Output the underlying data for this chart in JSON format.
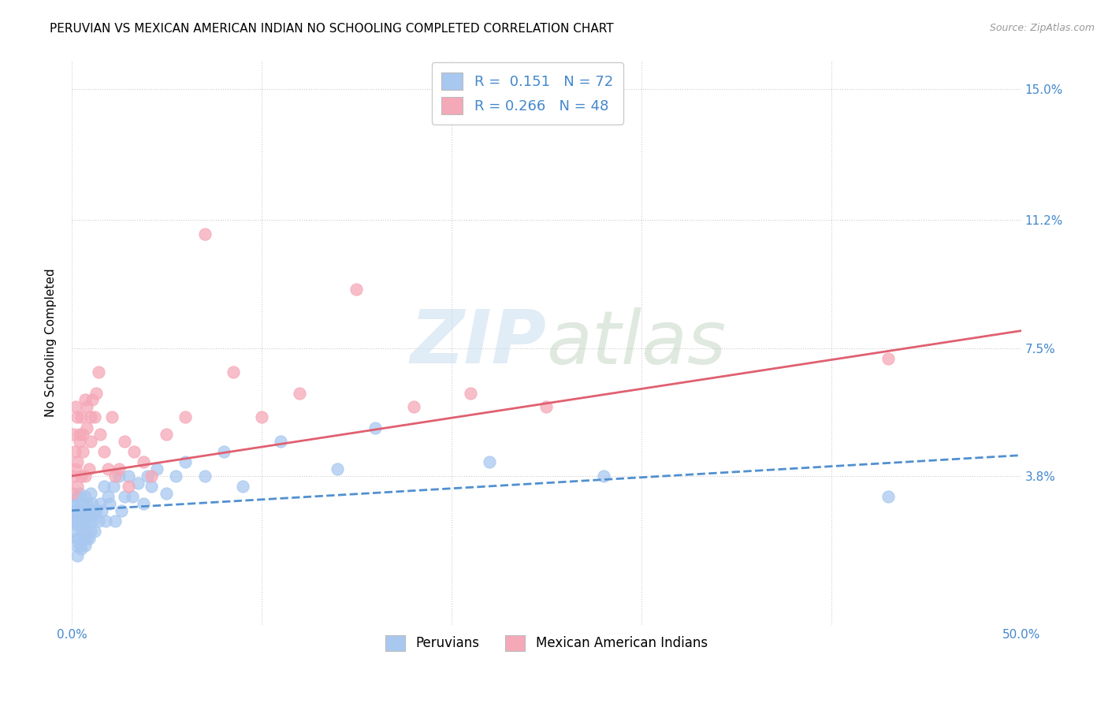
{
  "title": "PERUVIAN VS MEXICAN AMERICAN INDIAN NO SCHOOLING COMPLETED CORRELATION CHART",
  "source": "Source: ZipAtlas.com",
  "ylabel": "No Schooling Completed",
  "xlabel": "",
  "watermark_zip": "ZIP",
  "watermark_atlas": "atlas",
  "xlim": [
    0.0,
    0.5
  ],
  "ylim": [
    -0.005,
    0.158
  ],
  "xtick_positions": [
    0.0,
    0.1,
    0.2,
    0.3,
    0.4,
    0.5
  ],
  "xticklabels": [
    "0.0%",
    "",
    "",
    "",
    "",
    "50.0%"
  ],
  "ytick_positions": [
    0.038,
    0.075,
    0.112,
    0.15
  ],
  "ytick_labels": [
    "3.8%",
    "7.5%",
    "11.2%",
    "15.0%"
  ],
  "blue_R": "0.151",
  "blue_N": "72",
  "pink_R": "0.266",
  "pink_N": "48",
  "legend_label_blue": "Peruvians",
  "legend_label_pink": "Mexican American Indians",
  "blue_color": "#a8c8f0",
  "pink_color": "#f5a8b8",
  "blue_line_color": "#5090d0",
  "pink_line_color": "#e06070",
  "label_color": "#4488cc",
  "background_color": "#ffffff",
  "grid_color": "#cccccc",
  "title_fontsize": 11,
  "axis_label_fontsize": 11,
  "tick_fontsize": 11,
  "blue_scatter_x": [
    0.0005,
    0.001,
    0.001,
    0.0015,
    0.002,
    0.002,
    0.002,
    0.0025,
    0.003,
    0.003,
    0.003,
    0.003,
    0.003,
    0.004,
    0.004,
    0.004,
    0.004,
    0.005,
    0.005,
    0.005,
    0.005,
    0.006,
    0.006,
    0.006,
    0.007,
    0.007,
    0.007,
    0.007,
    0.008,
    0.008,
    0.008,
    0.009,
    0.009,
    0.01,
    0.01,
    0.01,
    0.011,
    0.011,
    0.012,
    0.012,
    0.013,
    0.014,
    0.015,
    0.016,
    0.017,
    0.018,
    0.019,
    0.02,
    0.022,
    0.023,
    0.025,
    0.026,
    0.028,
    0.03,
    0.032,
    0.035,
    0.038,
    0.04,
    0.042,
    0.045,
    0.05,
    0.055,
    0.06,
    0.07,
    0.08,
    0.09,
    0.11,
    0.14,
    0.16,
    0.22,
    0.28,
    0.43
  ],
  "blue_scatter_y": [
    0.026,
    0.022,
    0.03,
    0.028,
    0.018,
    0.024,
    0.03,
    0.025,
    0.015,
    0.02,
    0.026,
    0.032,
    0.02,
    0.018,
    0.024,
    0.028,
    0.033,
    0.017,
    0.023,
    0.028,
    0.025,
    0.02,
    0.025,
    0.03,
    0.018,
    0.022,
    0.027,
    0.032,
    0.02,
    0.025,
    0.03,
    0.02,
    0.027,
    0.022,
    0.028,
    0.033,
    0.025,
    0.03,
    0.022,
    0.027,
    0.028,
    0.025,
    0.03,
    0.028,
    0.035,
    0.025,
    0.032,
    0.03,
    0.035,
    0.025,
    0.038,
    0.028,
    0.032,
    0.038,
    0.032,
    0.036,
    0.03,
    0.038,
    0.035,
    0.04,
    0.033,
    0.038,
    0.042,
    0.038,
    0.045,
    0.035,
    0.048,
    0.04,
    0.052,
    0.042,
    0.038,
    0.032
  ],
  "pink_scatter_x": [
    0.0005,
    0.001,
    0.001,
    0.0015,
    0.002,
    0.002,
    0.003,
    0.003,
    0.003,
    0.004,
    0.004,
    0.005,
    0.005,
    0.006,
    0.006,
    0.007,
    0.007,
    0.008,
    0.008,
    0.009,
    0.01,
    0.01,
    0.011,
    0.012,
    0.013,
    0.014,
    0.015,
    0.017,
    0.019,
    0.021,
    0.023,
    0.025,
    0.028,
    0.03,
    0.033,
    0.038,
    0.042,
    0.05,
    0.06,
    0.07,
    0.085,
    0.1,
    0.12,
    0.15,
    0.18,
    0.21,
    0.25,
    0.43
  ],
  "pink_scatter_y": [
    0.033,
    0.038,
    0.05,
    0.045,
    0.04,
    0.058,
    0.042,
    0.055,
    0.035,
    0.05,
    0.048,
    0.055,
    0.038,
    0.05,
    0.045,
    0.06,
    0.038,
    0.052,
    0.058,
    0.04,
    0.055,
    0.048,
    0.06,
    0.055,
    0.062,
    0.068,
    0.05,
    0.045,
    0.04,
    0.055,
    0.038,
    0.04,
    0.048,
    0.035,
    0.045,
    0.042,
    0.038,
    0.05,
    0.055,
    0.108,
    0.068,
    0.055,
    0.062,
    0.092,
    0.058,
    0.062,
    0.058,
    0.072
  ],
  "blue_trend_x": [
    0.0,
    0.5
  ],
  "blue_trend_y": [
    0.028,
    0.044
  ],
  "pink_trend_x": [
    0.0,
    0.5
  ],
  "pink_trend_y": [
    0.038,
    0.08
  ]
}
